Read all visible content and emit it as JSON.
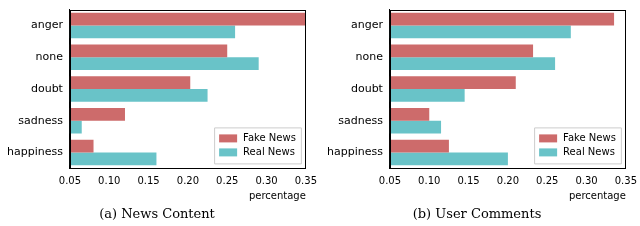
{
  "chart_data": [
    {
      "type": "bar",
      "orientation": "horizontal",
      "title": "(a) News Content",
      "categories": [
        "anger",
        "none",
        "doubt",
        "sadness",
        "happiness"
      ],
      "series": [
        {
          "name": "Fake News",
          "color": "#cd6b6b",
          "values": [
            0.35,
            0.25,
            0.203,
            0.12,
            0.08
          ]
        },
        {
          "name": "Real News",
          "color": "#69c3c8",
          "values": [
            0.26,
            0.29,
            0.225,
            0.065,
            0.16
          ]
        }
      ],
      "xlabel": "percentage",
      "xlim": [
        0.05,
        0.35
      ],
      "xticks": [
        0.05,
        {
          "value": 0.1,
          "label": "0.10"
        },
        0.15,
        {
          "value": 0.2,
          "label": "0.20"
        },
        0.25,
        {
          "value": 0.3,
          "label": "0.30"
        },
        0.35
      ],
      "grid": false,
      "legend": "lower right"
    },
    {
      "type": "bar",
      "orientation": "horizontal",
      "title": "(b) User Comments",
      "categories": [
        "anger",
        "none",
        "doubt",
        "sadness",
        "happiness"
      ],
      "series": [
        {
          "name": "Fake News",
          "color": "#cd6b6b",
          "values": [
            0.335,
            0.232,
            0.21,
            0.1,
            0.125
          ]
        },
        {
          "name": "Real News",
          "color": "#69c3c8",
          "values": [
            0.28,
            0.26,
            0.145,
            0.115,
            0.2
          ]
        }
      ],
      "xlabel": "percentage",
      "xlim": [
        0.05,
        0.35
      ],
      "xticks": [
        0.05,
        {
          "value": 0.1,
          "label": "0.10"
        },
        0.15,
        {
          "value": 0.2,
          "label": "0.20"
        },
        0.25,
        {
          "value": 0.3,
          "label": "0.30"
        },
        0.35
      ],
      "grid": false,
      "legend": "lower right"
    }
  ]
}
